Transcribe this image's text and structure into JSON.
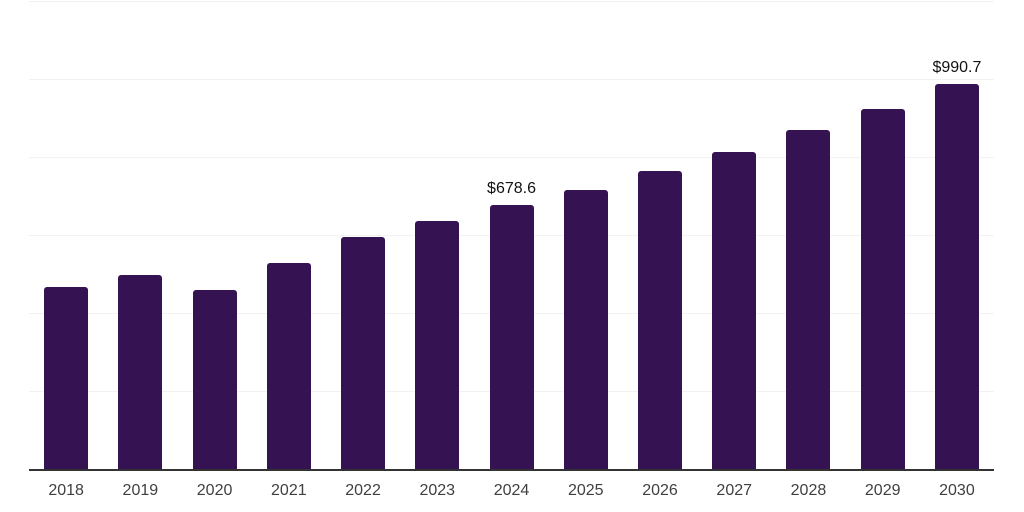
{
  "chart_data": {
    "type": "bar",
    "categories": [
      "2018",
      "2019",
      "2020",
      "2021",
      "2022",
      "2023",
      "2024",
      "2025",
      "2026",
      "2027",
      "2028",
      "2029",
      "2030"
    ],
    "values": [
      470.0,
      499.0,
      461.0,
      530.4,
      596.3,
      638.0,
      678.6,
      719.1,
      765.5,
      815.6,
      871.3,
      924.7,
      990.7
    ],
    "value_prefix": "$",
    "labeled_points": [
      {
        "category": "2024",
        "label": "$678.6"
      },
      {
        "category": "2030",
        "label": "$990.7"
      }
    ],
    "xlabel": "",
    "ylabel": "",
    "ylim": [
      0,
      1200
    ],
    "grid": {
      "visible": true,
      "step": 200,
      "y_tick_labels_visible": false
    },
    "legend": {
      "visible": false
    },
    "colors": {
      "bar": "#351352",
      "gridline": "#f2f2f2",
      "axis_line": "#333333",
      "tick_label": "#404040",
      "value_label": "#111111",
      "background": "#ffffff"
    }
  }
}
